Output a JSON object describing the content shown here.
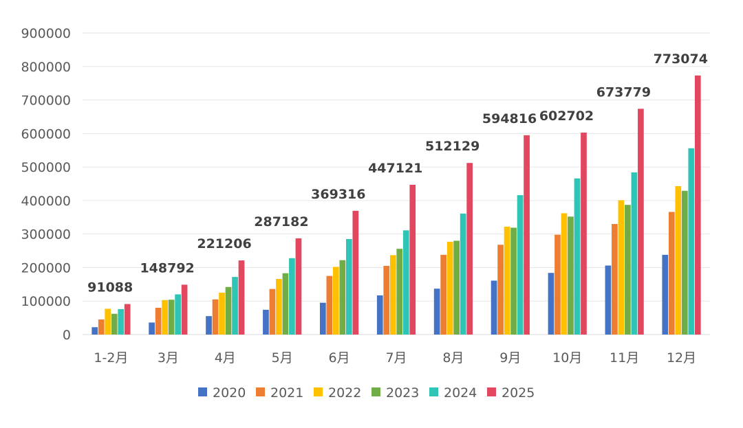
{
  "chart_data": {
    "type": "bar",
    "title": "",
    "xlabel": "",
    "ylabel": "",
    "ylim": [
      0,
      900000
    ],
    "yticks": [
      0,
      100000,
      200000,
      300000,
      400000,
      500000,
      600000,
      700000,
      800000,
      900000
    ],
    "grid": true,
    "legend_position": "bottom",
    "categories": [
      "1-2月",
      "3月",
      "4月",
      "5月",
      "6月",
      "7月",
      "8月",
      "9月",
      "10月",
      "11月",
      "12月"
    ],
    "series": [
      {
        "name": "2020",
        "color": "#4472C4",
        "values": [
          22000,
          36000,
          55000,
          74000,
          95000,
          117000,
          137000,
          161000,
          184000,
          206000,
          238000
        ]
      },
      {
        "name": "2021",
        "color": "#ED7D31",
        "values": [
          45000,
          80000,
          105000,
          136000,
          175000,
          205000,
          238000,
          268000,
          298000,
          330000,
          366000
        ]
      },
      {
        "name": "2022",
        "color": "#FFC000",
        "values": [
          77000,
          103000,
          125000,
          166000,
          202000,
          237000,
          277000,
          322000,
          362000,
          401000,
          443000
        ]
      },
      {
        "name": "2023",
        "color": "#70AD47",
        "values": [
          62000,
          104000,
          142000,
          183000,
          222000,
          256000,
          280000,
          319000,
          352000,
          387000,
          429000
        ]
      },
      {
        "name": "2024",
        "color": "#2EC4B6",
        "values": [
          76000,
          120000,
          172000,
          228000,
          285000,
          311000,
          361000,
          416000,
          466000,
          484000,
          556000
        ]
      },
      {
        "name": "2025",
        "color": "#E3475F",
        "values": [
          91088,
          148792,
          221206,
          287182,
          369316,
          447121,
          512129,
          594816,
          602702,
          673779,
          773074
        ]
      }
    ],
    "data_labels": {
      "series": "2025",
      "values": [
        "91088",
        "148792",
        "221206",
        "287182",
        "369316",
        "447121",
        "512129",
        "594816",
        "602702",
        "673779",
        "773074"
      ]
    }
  }
}
